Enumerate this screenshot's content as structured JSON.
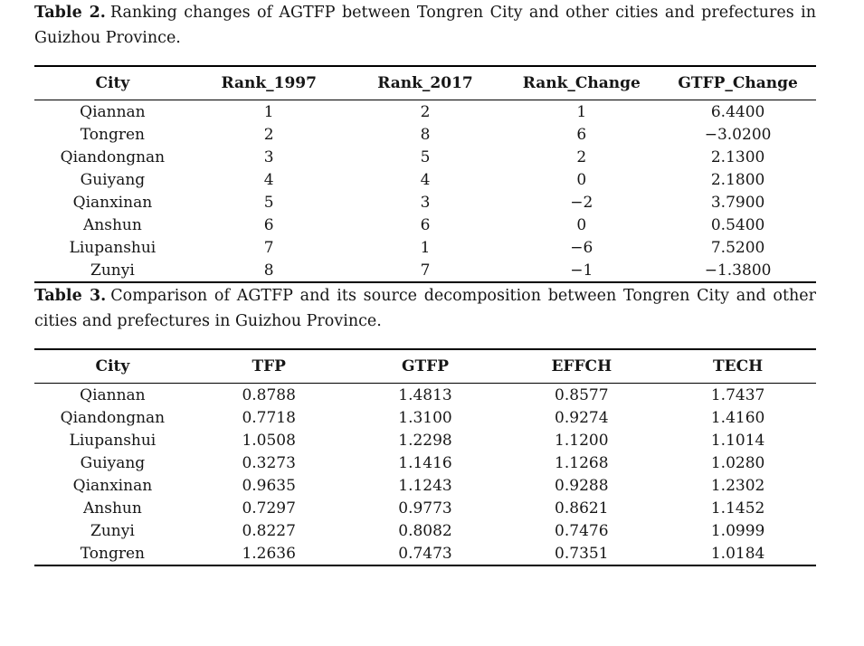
{
  "page": {
    "background_color": "#ffffff",
    "text_color": "#161616",
    "rule_color": "#000000"
  },
  "tables": [
    {
      "caption_label": "Table 2.",
      "caption_text": "Ranking changes of AGTFP between Tongren City and other cities and prefectures in Guizhou Province.",
      "columns": [
        "City",
        "Rank_1997",
        "Rank_2017",
        "Rank_Change",
        "GTFP_Change"
      ],
      "rows": [
        [
          "Qiannan",
          "1",
          "2",
          "1",
          "6.4400"
        ],
        [
          "Tongren",
          "2",
          "8",
          "6",
          "−3.0200"
        ],
        [
          "Qiandongnan",
          "3",
          "5",
          "2",
          "2.1300"
        ],
        [
          "Guiyang",
          "4",
          "4",
          "0",
          "2.1800"
        ],
        [
          "Qianxinan",
          "5",
          "3",
          "−2",
          "3.7900"
        ],
        [
          "Anshun",
          "6",
          "6",
          "0",
          "0.5400"
        ],
        [
          "Liupanshui",
          "7",
          "1",
          "−6",
          "7.5200"
        ],
        [
          "Zunyi",
          "8",
          "7",
          "−1",
          "−1.3800"
        ]
      ]
    },
    {
      "caption_label": "Table 3.",
      "caption_text": "Comparison of AGTFP and its source decomposition between Tongren City and other cities and prefectures in Guizhou Province.",
      "columns": [
        "City",
        "TFP",
        "GTFP",
        "EFFCH",
        "TECH"
      ],
      "rows": [
        [
          "Qiannan",
          "0.8788",
          "1.4813",
          "0.8577",
          "1.7437"
        ],
        [
          "Qiandongnan",
          "0.7718",
          "1.3100",
          "0.9274",
          "1.4160"
        ],
        [
          "Liupanshui",
          "1.0508",
          "1.2298",
          "1.1200",
          "1.1014"
        ],
        [
          "Guiyang",
          "0.3273",
          "1.1416",
          "1.1268",
          "1.0280"
        ],
        [
          "Qianxinan",
          "0.9635",
          "1.1243",
          "0.9288",
          "1.2302"
        ],
        [
          "Anshun",
          "0.7297",
          "0.9773",
          "0.8621",
          "1.1452"
        ],
        [
          "Zunyi",
          "0.8227",
          "0.8082",
          "0.7476",
          "1.0999"
        ],
        [
          "Tongren",
          "1.2636",
          "0.7473",
          "0.7351",
          "1.0184"
        ]
      ]
    }
  ]
}
